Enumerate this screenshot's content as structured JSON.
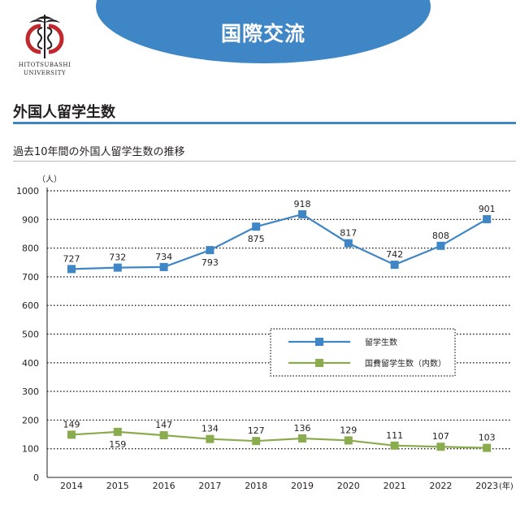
{
  "header": {
    "banner_title": "国際交流",
    "university_name_line1": "HITOTSUBASHI",
    "university_name_line2": "UNIVERSITY"
  },
  "section": {
    "title": "外国人留学生数",
    "subtitle": "過去10年間の外国人留学生数の推移"
  },
  "colors": {
    "accent_blue": "#3f86c6",
    "series_blue": "#3f86c6",
    "series_green": "#8aac4e",
    "logo_red": "#c0282d"
  },
  "chart_data": {
    "type": "line",
    "ylabel": "（人）",
    "xlabel": "(年)",
    "ylim": [
      0,
      1000
    ],
    "yticks": [
      0,
      100,
      200,
      300,
      400,
      500,
      600,
      700,
      800,
      900,
      1000
    ],
    "categories": [
      "2014",
      "2015",
      "2016",
      "2017",
      "2018",
      "2019",
      "2020",
      "2021",
      "2022",
      "2023"
    ],
    "grid": "horizontal dotted",
    "legend_position": "center-right",
    "series": [
      {
        "name": "留学生数",
        "color": "#3f86c6",
        "values": [
          727,
          732,
          734,
          793,
          875,
          918,
          817,
          742,
          808,
          901
        ],
        "label_positions": [
          "above",
          "above",
          "above",
          "below",
          "below",
          "above",
          "above",
          "above",
          "above",
          "above"
        ]
      },
      {
        "name": "国費留学生数（内数）",
        "color": "#8aac4e",
        "values": [
          149,
          159,
          147,
          134,
          127,
          136,
          129,
          111,
          107,
          103
        ],
        "label_positions": [
          "above",
          "below",
          "above",
          "above",
          "above",
          "above",
          "above",
          "above",
          "above",
          "above"
        ]
      }
    ]
  }
}
